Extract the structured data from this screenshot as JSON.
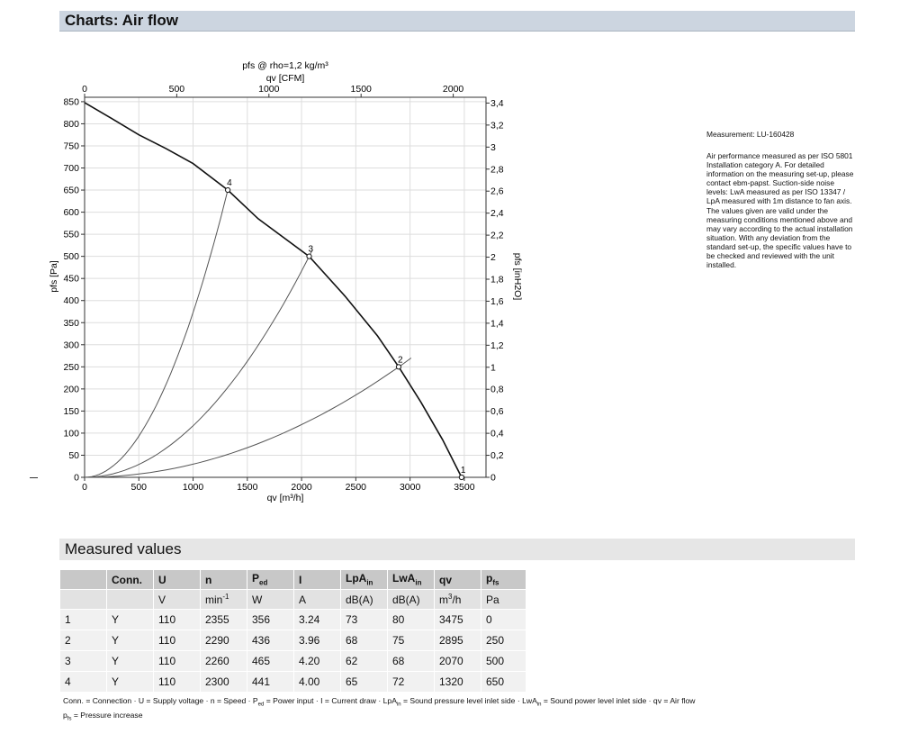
{
  "header": {
    "title": "Charts: Air flow"
  },
  "chart_data": {
    "type": "line",
    "title": "pfs @ rho=1,2 kg/m³",
    "top_axis_label": "qv [CFM]",
    "top_ticks": [
      "0",
      "500",
      "1000",
      "1500",
      "2000"
    ],
    "top_tick_values": [
      0,
      500,
      1000,
      1500,
      2000
    ],
    "xlabel": "qv [m³/h]",
    "x_ticks": [
      "0",
      "500",
      "1000",
      "1500",
      "2000",
      "2500",
      "3000",
      "3500"
    ],
    "x_tick_values": [
      0,
      500,
      1000,
      1500,
      2000,
      2500,
      3000,
      3500
    ],
    "xlim": [
      0,
      3700
    ],
    "ylabel": "pfs [Pa]",
    "y_ticks": [
      "0",
      "50",
      "100",
      "150",
      "200",
      "250",
      "300",
      "350",
      "400",
      "450",
      "500",
      "550",
      "600",
      "650",
      "700",
      "750",
      "800",
      "850"
    ],
    "y_tick_values": [
      0,
      50,
      100,
      150,
      200,
      250,
      300,
      350,
      400,
      450,
      500,
      550,
      600,
      650,
      700,
      750,
      800,
      850
    ],
    "ylim": [
      0,
      860
    ],
    "right_axis_label": "pfs [inH2O]",
    "right_ticks": [
      "0",
      "0,2",
      "0,4",
      "0,6",
      "0,8",
      "1",
      "1,2",
      "1,4",
      "1,6",
      "1,8",
      "2",
      "2,2",
      "2,4",
      "2,6",
      "2,8",
      "3",
      "3,2",
      "3,4"
    ],
    "right_tick_values": [
      0,
      0.2,
      0.4,
      0.6,
      0.8,
      1,
      1.2,
      1.4,
      1.6,
      1.8,
      2,
      2.2,
      2.4,
      2.6,
      2.8,
      3,
      3.2,
      3.4
    ],
    "grid": true,
    "fan_curve": [
      [
        0,
        848
      ],
      [
        250,
        812
      ],
      [
        500,
        775
      ],
      [
        750,
        744
      ],
      [
        1000,
        710
      ],
      [
        1320,
        650
      ],
      [
        1600,
        585
      ],
      [
        2070,
        500
      ],
      [
        2400,
        410
      ],
      [
        2700,
        320
      ],
      [
        2895,
        250
      ],
      [
        3100,
        170
      ],
      [
        3300,
        85
      ],
      [
        3475,
        0
      ]
    ],
    "system_curves": [
      {
        "label": "4",
        "k": 0.000373,
        "x_end": 1320
      },
      {
        "label": "3",
        "k": 0.0001167,
        "x_end": 2095
      },
      {
        "label": "2",
        "k": 2.98e-05,
        "x_end": 3010
      }
    ],
    "operating_points": [
      {
        "label": "1",
        "x": 3475,
        "y": 0
      },
      {
        "label": "2",
        "x": 2895,
        "y": 250
      },
      {
        "label": "3",
        "x": 2070,
        "y": 500
      },
      {
        "label": "4",
        "x": 1320,
        "y": 650
      }
    ]
  },
  "notes": {
    "measurement": "Measurement: LU-160428",
    "performance_lines": [
      "Air performance measured as per ISO 5801",
      "Installation category A. For detailed",
      "information on the measuring set-up, please",
      "contact ebm-papst. Suction-side noise",
      "levels: LwA measured as per ISO 13347 /",
      "LpA measured with 1m distance to fan axis.",
      "The values given are valid under the",
      "measuring conditions mentioned above and",
      "may vary according to the actual installation",
      "situation. With any deviation from the",
      "standard set-up, the specific values have to",
      "be checked and reviewed with the unit",
      "installed."
    ]
  },
  "measured": {
    "title": "Measured values",
    "header_labels": {
      "conn": "Conn.",
      "u": "U",
      "n": "n",
      "ped_main": "P",
      "ped_sub": "ed",
      "i": "I",
      "lpa_main": "LpA",
      "lpa_sub": "in",
      "lwa_main": "LwA",
      "lwa_sub": "in",
      "qv": "qv",
      "pfs_main": "p",
      "pfs_sub": "fs"
    },
    "units": {
      "u": "V",
      "n_main": "min",
      "n_sup": "-1",
      "ped": "W",
      "i": "A",
      "lpa": "dB(A)",
      "lwa": "dB(A)",
      "qv_main": "m",
      "qv_sup": "3",
      "qv_rest": "/h",
      "pfs": "Pa"
    },
    "rows": [
      [
        "1",
        "Y",
        "110",
        "2355",
        "356",
        "3.24",
        "73",
        "80",
        "3475",
        "0"
      ],
      [
        "2",
        "Y",
        "110",
        "2290",
        "436",
        "3.96",
        "68",
        "75",
        "2895",
        "250"
      ],
      [
        "3",
        "Y",
        "110",
        "2260",
        "465",
        "4.20",
        "62",
        "68",
        "2070",
        "500"
      ],
      [
        "4",
        "Y",
        "110",
        "2300",
        "441",
        "4.00",
        "65",
        "72",
        "1320",
        "650"
      ]
    ]
  },
  "legend": {
    "l1_a": "Conn. = Connection · U = Supply voltage · n = Speed · P",
    "l1_ped_sub": "ed",
    "l1_b": " = Power input · I = Current draw · LpA",
    "l1_lpa_sub": "in",
    "l1_c": " = Sound pressure level inlet side · LwA",
    "l1_lwa_sub": "in",
    "l1_d": " = Sound power level inlet side · qv = Air flow",
    "l2_p": "p",
    "l2_sub": "fs",
    "l2_rest": " = Pressure increase"
  }
}
